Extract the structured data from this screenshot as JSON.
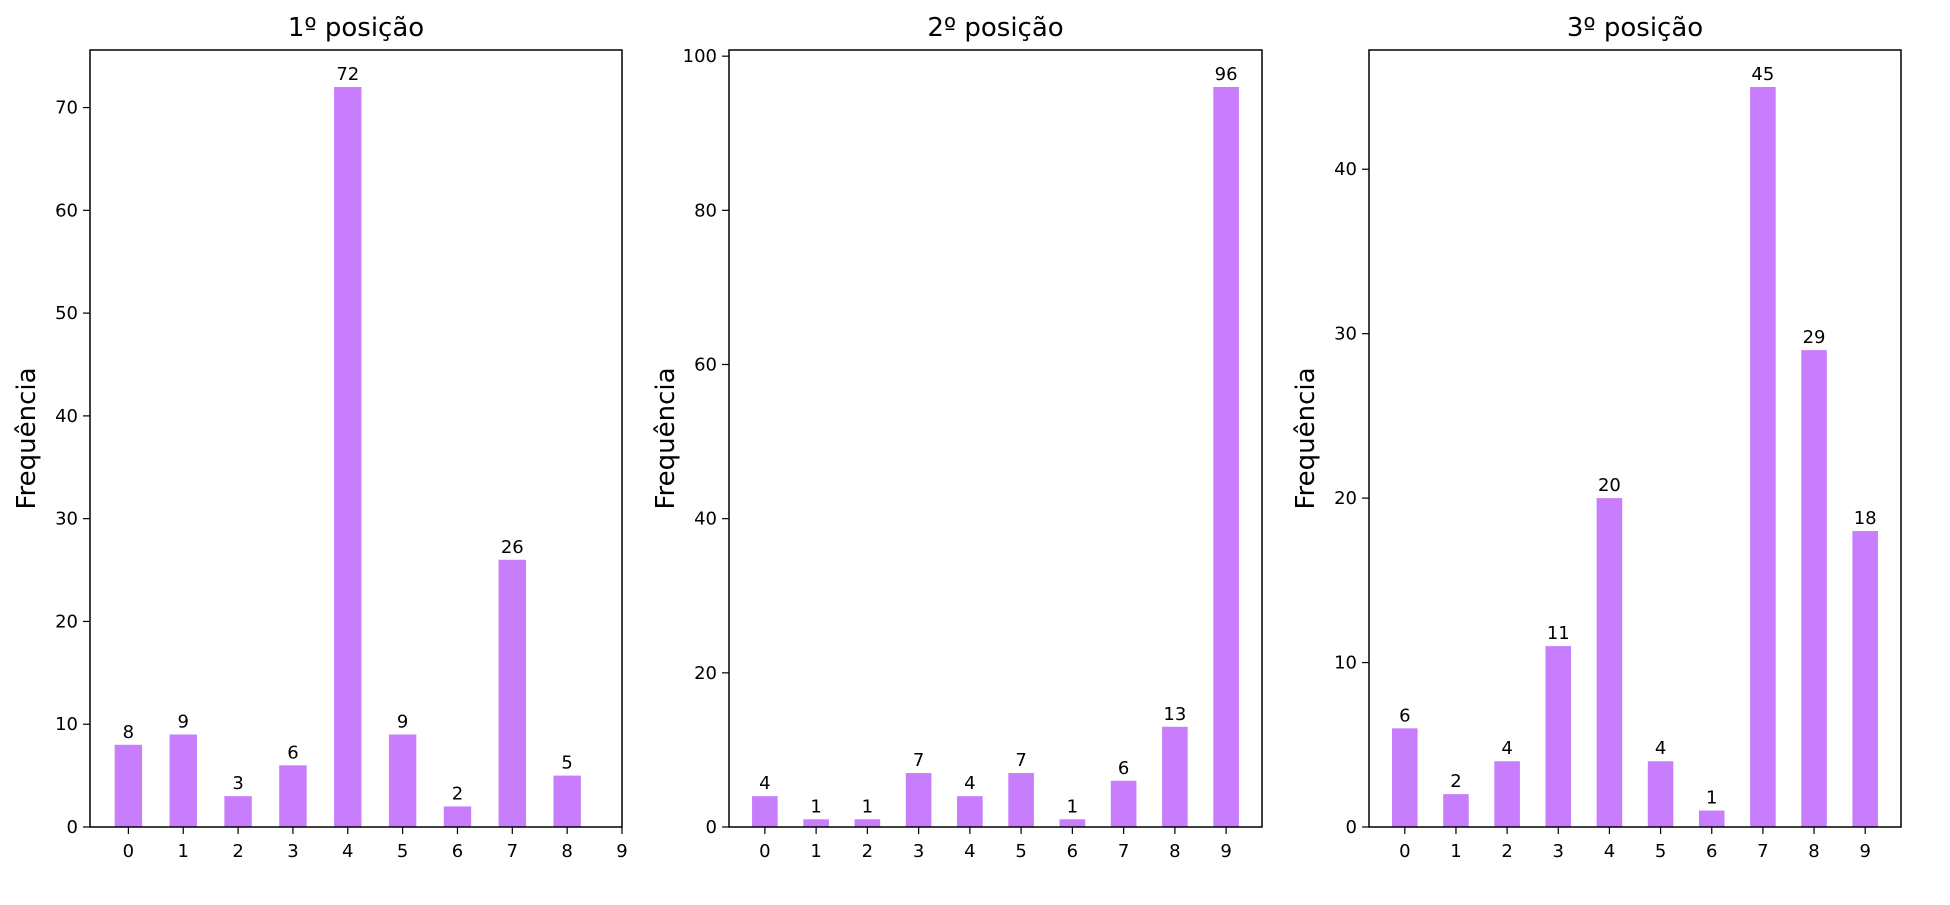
{
  "bar_color": "#c77dfc",
  "chart_data": [
    {
      "type": "bar",
      "title": "1º posição",
      "xlabel": "",
      "ylabel": "Frequência",
      "categories": [
        "0",
        "1",
        "2",
        "3",
        "4",
        "5",
        "6",
        "7",
        "8"
      ],
      "values": [
        8,
        9,
        3,
        6,
        72,
        9,
        2,
        26,
        5
      ],
      "xticks": [
        "0",
        "1",
        "2",
        "3",
        "4",
        "5",
        "6",
        "7",
        "8",
        "9"
      ],
      "yticks": [
        0,
        10,
        20,
        30,
        40,
        50,
        60,
        70
      ],
      "xlim": [
        -0.7,
        9
      ],
      "ylim": [
        0,
        75.6
      ],
      "grid": false,
      "data_labels": true
    },
    {
      "type": "bar",
      "title": "2º posição",
      "xlabel": "",
      "ylabel": "Frequência",
      "categories": [
        "0",
        "1",
        "2",
        "3",
        "4",
        "5",
        "6",
        "7",
        "8",
        "9"
      ],
      "values": [
        4,
        1,
        1,
        7,
        4,
        7,
        1,
        6,
        13,
        96
      ],
      "xticks": [
        "0",
        "1",
        "2",
        "3",
        "4",
        "5",
        "6",
        "7",
        "8",
        "9"
      ],
      "yticks": [
        0,
        20,
        40,
        60,
        80,
        100
      ],
      "xlim": [
        -0.7,
        9.7
      ],
      "ylim": [
        0,
        100.8
      ],
      "grid": false,
      "data_labels": true
    },
    {
      "type": "bar",
      "title": "3º posição",
      "xlabel": "",
      "ylabel": "Frequência",
      "categories": [
        "0",
        "1",
        "2",
        "3",
        "4",
        "5",
        "6",
        "7",
        "8",
        "9"
      ],
      "values": [
        6,
        2,
        4,
        11,
        20,
        4,
        1,
        45,
        29,
        18
      ],
      "xticks": [
        "0",
        "1",
        "2",
        "3",
        "4",
        "5",
        "6",
        "7",
        "8",
        "9"
      ],
      "yticks": [
        0,
        10,
        20,
        30,
        40
      ],
      "xlim": [
        -0.7,
        9.7
      ],
      "ylim": [
        0,
        47.25
      ],
      "grid": false,
      "data_labels": true
    }
  ]
}
